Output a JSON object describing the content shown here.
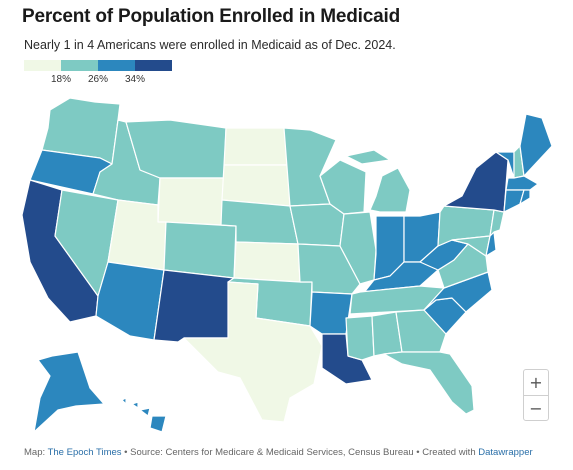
{
  "header": {
    "title": "Percent of Population Enrolled in Medicaid",
    "subtitle": "Nearly 1 in 4 Americans were enrolled in Medicaid as of Dec. 2024."
  },
  "legend": {
    "colors": [
      "#f0f8e6",
      "#7ecac3",
      "#2c87be",
      "#234b8c"
    ],
    "ticks": [
      "18%",
      "26%",
      "34%"
    ]
  },
  "map_data": {
    "type": "choropleth",
    "region": "United States",
    "bins": [
      {
        "label": "under 18%",
        "color": "#f0f8e6"
      },
      {
        "label": "18% – 26%",
        "color": "#7ecac3"
      },
      {
        "label": "26% – 34%",
        "color": "#2c87be"
      },
      {
        "label": "over 34%",
        "color": "#234b8c"
      }
    ],
    "states": {
      "WA": 1,
      "OR": 2,
      "CA": 3,
      "ID": 1,
      "NV": 1,
      "MT": 1,
      "WY": 0,
      "UT": 0,
      "AZ": 2,
      "CO": 1,
      "NM": 3,
      "ND": 0,
      "SD": 0,
      "NE": 1,
      "KS": 0,
      "OK": 1,
      "TX": 0,
      "MN": 1,
      "IA": 1,
      "MO": 1,
      "AR": 2,
      "LA": 3,
      "WI": 1,
      "IL": 1,
      "MI": 1,
      "IN": 2,
      "OH": 2,
      "KY": 2,
      "TN": 1,
      "MS": 1,
      "AL": 1,
      "GA": 1,
      "FL": 1,
      "SC": 2,
      "NC": 2,
      "VA": 1,
      "WV": 2,
      "PA": 1,
      "NY": 3,
      "VT": 2,
      "NH": 1,
      "ME": 2,
      "MA": 2,
      "CT": 2,
      "RI": 2,
      "NJ": 1,
      "DE": 2,
      "MD": 1,
      "AK": 2,
      "HI": 2
    }
  },
  "zoom": {
    "in_label": "+",
    "out_label": "−"
  },
  "footer": {
    "map_prefix": "Map:",
    "map_credit": "The Epoch Times",
    "source_text": "• Source: Centers for Medicare & Medicaid Services, Census Bureau • Created with",
    "tool_name": "Datawrapper"
  }
}
